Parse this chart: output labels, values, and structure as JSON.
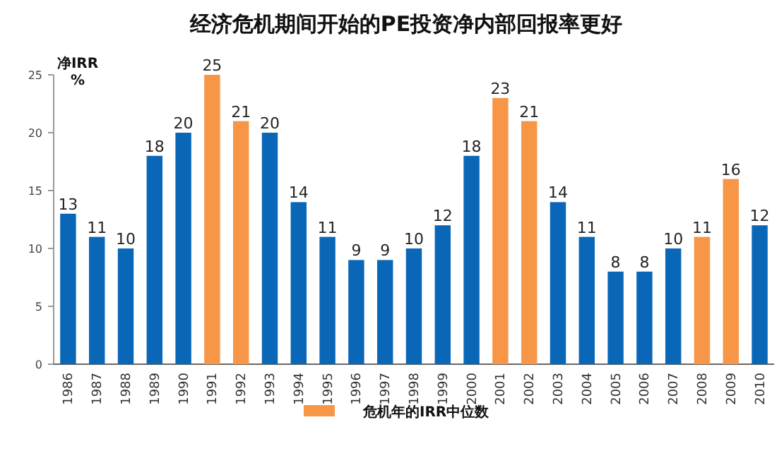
{
  "chart_data": {
    "type": "bar",
    "title": "经济危机期间开始的PE投资净内部回报率更好",
    "ylabel": "净IRR\n%",
    "categories": [
      "1986",
      "1987",
      "1988",
      "1989",
      "1990",
      "1991",
      "1992",
      "1993",
      "1994",
      "1995",
      "1996",
      "1997",
      "1998",
      "1999",
      "2000",
      "2001",
      "2002",
      "2003",
      "2004",
      "2005",
      "2006",
      "2007",
      "2008",
      "2009",
      "2010"
    ],
    "series": [
      {
        "color": "#0a67b8",
        "values": [
          13,
          11,
          10,
          18,
          20,
          null,
          null,
          20,
          14,
          11,
          9,
          9,
          10,
          12,
          18,
          null,
          null,
          14,
          11,
          8,
          8,
          10,
          null,
          null,
          12
        ]
      },
      {
        "name": "危机年的IRR中位数",
        "color": "#f79646",
        "values": [
          null,
          null,
          null,
          null,
          null,
          25,
          21,
          null,
          null,
          null,
          null,
          null,
          null,
          null,
          null,
          23,
          21,
          null,
          null,
          null,
          null,
          null,
          11,
          16,
          null
        ]
      }
    ],
    "stacked": true,
    "ylim": [
      0,
      25
    ],
    "yticks": [
      0,
      5,
      10,
      15,
      20,
      25
    ],
    "data_labels": true,
    "legend": "bottom",
    "grid": false
  }
}
